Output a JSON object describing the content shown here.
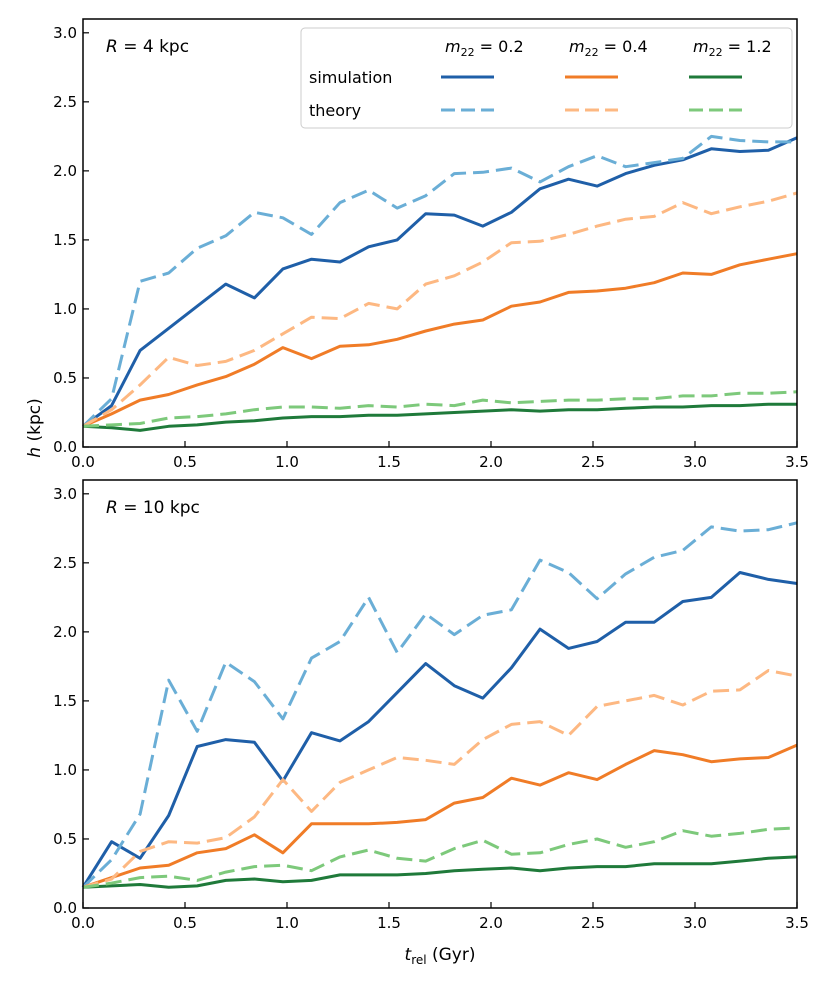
{
  "chart_data": [
    {
      "type": "line",
      "panel_label": "R = 4 kpc",
      "ylabel": "h (kpc)",
      "xlabel": "",
      "xlim": [
        0.0,
        3.5
      ],
      "ylim": [
        0.0,
        3.1
      ],
      "x_ticks": [
        "0.0",
        "0.5",
        "1.0",
        "1.5",
        "2.0",
        "2.5",
        "3.0",
        "3.5"
      ],
      "y_ticks": [
        "0.0",
        "0.5",
        "1.0",
        "1.5",
        "2.0",
        "2.5",
        "3.0"
      ],
      "grid": false,
      "legend": {
        "placement": "top-right",
        "row_labels": [
          "simulation",
          "theory"
        ],
        "column_labels": [
          "m22 = 0.2",
          "m22 = 0.4",
          "m22 = 1.2"
        ]
      },
      "x": [
        0.0,
        0.14,
        0.28,
        0.42,
        0.56,
        0.7,
        0.84,
        0.98,
        1.12,
        1.26,
        1.4,
        1.54,
        1.68,
        1.82,
        1.96,
        2.1,
        2.24,
        2.38,
        2.52,
        2.66,
        2.8,
        2.94,
        3.08,
        3.22,
        3.36,
        3.5
      ],
      "series": [
        {
          "name": "simulation m22=0.2",
          "color": "#1f5fa8",
          "dash": "solid",
          "values": [
            0.15,
            0.3,
            0.7,
            0.86,
            1.02,
            1.18,
            1.08,
            1.29,
            1.36,
            1.34,
            1.45,
            1.5,
            1.69,
            1.68,
            1.6,
            1.7,
            1.87,
            1.94,
            1.89,
            1.98,
            2.04,
            2.08,
            2.16,
            2.14,
            2.15,
            2.24
          ]
        },
        {
          "name": "theory m22=0.2",
          "color": "#6aaed6",
          "dash": "dashed",
          "values": [
            0.15,
            0.35,
            1.2,
            1.26,
            1.44,
            1.53,
            1.7,
            1.66,
            1.54,
            1.77,
            1.86,
            1.73,
            1.82,
            1.98,
            1.99,
            2.02,
            1.92,
            2.03,
            2.11,
            2.03,
            2.06,
            2.09,
            2.25,
            2.22,
            2.21,
            2.21
          ]
        },
        {
          "name": "simulation m22=0.4",
          "color": "#f07c27",
          "dash": "solid",
          "values": [
            0.15,
            0.24,
            0.34,
            0.38,
            0.45,
            0.51,
            0.6,
            0.72,
            0.64,
            0.73,
            0.74,
            0.78,
            0.84,
            0.89,
            0.92,
            1.02,
            1.05,
            1.12,
            1.13,
            1.15,
            1.19,
            1.26,
            1.25,
            1.32,
            1.36,
            1.4
          ]
        },
        {
          "name": "theory m22=0.4",
          "color": "#fdb882",
          "dash": "dashed",
          "values": [
            0.15,
            0.27,
            0.45,
            0.65,
            0.59,
            0.62,
            0.7,
            0.82,
            0.94,
            0.93,
            1.04,
            1.0,
            1.18,
            1.24,
            1.34,
            1.48,
            1.49,
            1.54,
            1.6,
            1.65,
            1.67,
            1.77,
            1.69,
            1.74,
            1.78,
            1.84
          ]
        },
        {
          "name": "simulation m22=1.2",
          "color": "#1f7a3a",
          "dash": "solid",
          "values": [
            0.15,
            0.14,
            0.12,
            0.15,
            0.16,
            0.18,
            0.19,
            0.21,
            0.22,
            0.22,
            0.23,
            0.23,
            0.24,
            0.25,
            0.26,
            0.27,
            0.26,
            0.27,
            0.27,
            0.28,
            0.29,
            0.29,
            0.3,
            0.3,
            0.31,
            0.31
          ]
        },
        {
          "name": "theory m22=1.2",
          "color": "#7dc97b",
          "dash": "dashed",
          "values": [
            0.15,
            0.16,
            0.17,
            0.21,
            0.22,
            0.24,
            0.27,
            0.29,
            0.29,
            0.28,
            0.3,
            0.29,
            0.31,
            0.3,
            0.34,
            0.32,
            0.33,
            0.34,
            0.34,
            0.35,
            0.35,
            0.37,
            0.37,
            0.39,
            0.39,
            0.4
          ]
        }
      ]
    },
    {
      "type": "line",
      "panel_label": "R = 10 kpc",
      "ylabel": "",
      "xlabel": "t_rel (Gyr)",
      "xlim": [
        0.0,
        3.5
      ],
      "ylim": [
        0.0,
        3.1
      ],
      "x_ticks": [
        "0.0",
        "0.5",
        "1.0",
        "1.5",
        "2.0",
        "2.5",
        "3.0",
        "3.5"
      ],
      "y_ticks": [
        "0.0",
        "0.5",
        "1.0",
        "1.5",
        "2.0",
        "2.5",
        "3.0"
      ],
      "grid": false,
      "x": [
        0.0,
        0.14,
        0.28,
        0.42,
        0.56,
        0.7,
        0.84,
        0.98,
        1.12,
        1.26,
        1.4,
        1.54,
        1.68,
        1.82,
        1.96,
        2.1,
        2.24,
        2.38,
        2.52,
        2.66,
        2.8,
        2.94,
        3.08,
        3.22,
        3.36,
        3.5
      ],
      "series": [
        {
          "name": "simulation m22=0.2",
          "color": "#1f5fa8",
          "dash": "solid",
          "values": [
            0.15,
            0.48,
            0.36,
            0.67,
            1.17,
            1.22,
            1.2,
            0.92,
            1.27,
            1.21,
            1.35,
            1.56,
            1.77,
            1.61,
            1.52,
            1.74,
            2.02,
            1.88,
            1.93,
            2.07,
            2.07,
            2.22,
            2.25,
            2.43,
            2.38,
            2.35
          ]
        },
        {
          "name": "theory m22=0.2",
          "color": "#6aaed6",
          "dash": "dashed",
          "values": [
            0.15,
            0.35,
            0.68,
            1.65,
            1.28,
            1.78,
            1.64,
            1.37,
            1.81,
            1.93,
            2.25,
            1.85,
            2.13,
            1.98,
            2.12,
            2.16,
            2.52,
            2.43,
            2.24,
            2.42,
            2.54,
            2.59,
            2.76,
            2.73,
            2.74,
            2.79
          ]
        },
        {
          "name": "simulation m22=0.4",
          "color": "#f07c27",
          "dash": "solid",
          "values": [
            0.15,
            0.22,
            0.29,
            0.31,
            0.4,
            0.43,
            0.53,
            0.4,
            0.61,
            0.61,
            0.61,
            0.62,
            0.64,
            0.76,
            0.8,
            0.94,
            0.89,
            0.98,
            0.93,
            1.04,
            1.14,
            1.11,
            1.06,
            1.08,
            1.09,
            1.18
          ]
        },
        {
          "name": "theory m22=0.4",
          "color": "#fdb882",
          "dash": "dashed",
          "values": [
            0.15,
            0.21,
            0.41,
            0.48,
            0.47,
            0.51,
            0.66,
            0.93,
            0.7,
            0.91,
            1.0,
            1.09,
            1.07,
            1.04,
            1.22,
            1.33,
            1.35,
            1.25,
            1.46,
            1.5,
            1.54,
            1.47,
            1.57,
            1.58,
            1.72,
            1.68
          ]
        },
        {
          "name": "simulation m22=1.2",
          "color": "#1f7a3a",
          "dash": "solid",
          "values": [
            0.15,
            0.16,
            0.17,
            0.15,
            0.16,
            0.2,
            0.21,
            0.19,
            0.2,
            0.24,
            0.24,
            0.24,
            0.25,
            0.27,
            0.28,
            0.29,
            0.27,
            0.29,
            0.3,
            0.3,
            0.32,
            0.32,
            0.32,
            0.34,
            0.36,
            0.37
          ]
        },
        {
          "name": "theory m22=1.2",
          "color": "#7dc97b",
          "dash": "dashed",
          "values": [
            0.15,
            0.18,
            0.22,
            0.23,
            0.2,
            0.26,
            0.3,
            0.31,
            0.27,
            0.37,
            0.42,
            0.36,
            0.34,
            0.43,
            0.49,
            0.39,
            0.4,
            0.46,
            0.5,
            0.44,
            0.48,
            0.56,
            0.52,
            0.54,
            0.57,
            0.58
          ]
        }
      ]
    }
  ]
}
